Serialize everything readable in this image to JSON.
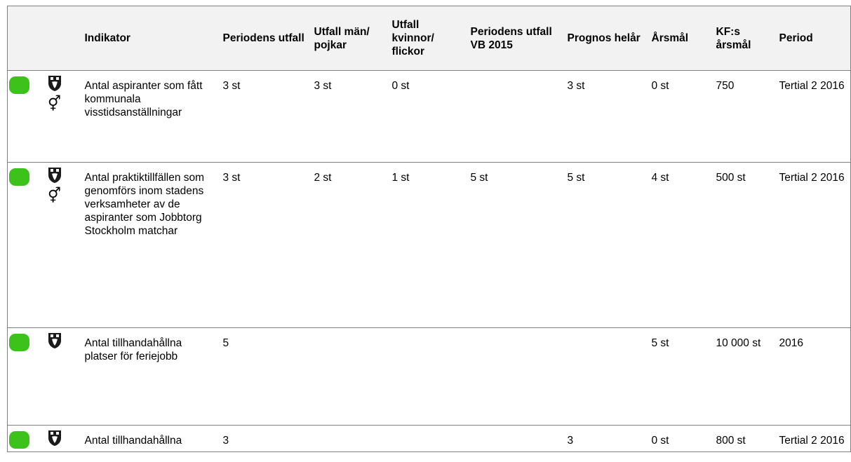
{
  "headers": {
    "indikator": "Indikator",
    "periodens_utfall": "Periodens utfall",
    "utfall_man": "Utfall män/ pojkar",
    "utfall_kvinnor": "Utfall kvinnor/ flickor",
    "periodens_utfall_vb": "Periodens utfall VB 2015",
    "prognos": "Prognos helår",
    "arsmal": "Årsmål",
    "kf_arsmal": "KF:s årsmål",
    "period": "Period"
  },
  "colors": {
    "status_green": "#3cc21b",
    "header_bg": "#f2f2f2",
    "border": "#7f7f7f"
  },
  "rows": [
    {
      "status": "green",
      "icons": [
        "shield-icon",
        "gender-icon"
      ],
      "indikator": "Antal aspiranter som fått kommunala visstidsanställningar",
      "periodens_utfall": "3 st",
      "utfall_man": "3 st",
      "utfall_kvinnor": "0 st",
      "periodens_utfall_vb": "",
      "prognos": "3 st",
      "arsmal": "0 st",
      "kf_arsmal": "750",
      "period": "Tertial 2 2016"
    },
    {
      "status": "green",
      "icons": [
        "shield-icon",
        "gender-icon"
      ],
      "indikator": "Antal praktiktillfällen som genomförs inom stadens verksamheter av de aspiranter som Jobbtorg Stockholm matchar",
      "periodens_utfall": "3 st",
      "utfall_man": "2 st",
      "utfall_kvinnor": "1 st",
      "periodens_utfall_vb": "5 st",
      "prognos": "5 st",
      "arsmal": "4 st",
      "kf_arsmal": "500 st",
      "period": "Tertial 2 2016"
    },
    {
      "status": "green",
      "icons": [
        "shield-icon"
      ],
      "indikator": "Antal tillhandahållna platser för feriejobb",
      "periodens_utfall": "5",
      "utfall_man": "",
      "utfall_kvinnor": "",
      "periodens_utfall_vb": "",
      "prognos": "",
      "arsmal": "5 st",
      "kf_arsmal": "10 000 st",
      "period": "2016"
    },
    {
      "status": "green",
      "icons": [
        "shield-icon"
      ],
      "indikator": "Antal tillhandahållna",
      "periodens_utfall": "3",
      "utfall_man": "",
      "utfall_kvinnor": "",
      "periodens_utfall_vb": "",
      "prognos": "3",
      "arsmal": "0 st",
      "kf_arsmal": "800 st",
      "period": "Tertial 2 2016"
    }
  ]
}
